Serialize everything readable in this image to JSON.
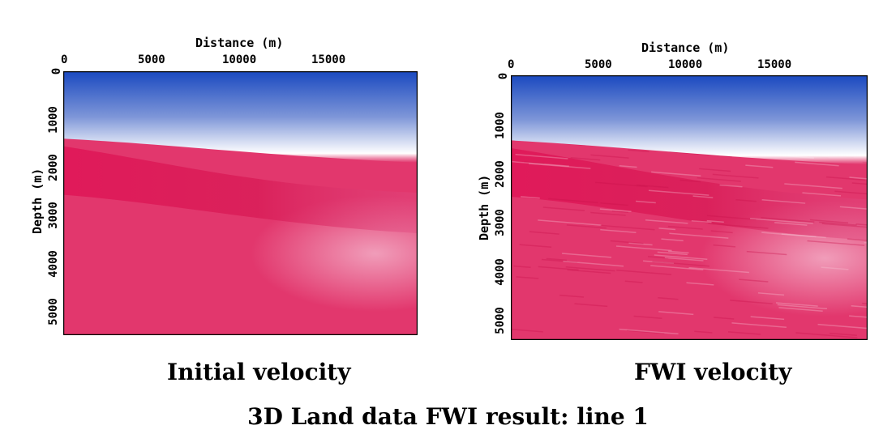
{
  "title": "3D Land data FWI result: line 1",
  "colors": {
    "low_velocity": "#1a49c0",
    "mid_velocity": "#ffffff",
    "high_velocity": "#e01a5a"
  },
  "chart_data": [
    {
      "type": "heatmap",
      "caption": "Initial velocity",
      "xlabel": "Distance (m)",
      "ylabel": "Depth (m)",
      "xlim": [
        0,
        19700
      ],
      "ylim": [
        0,
        5500
      ],
      "xticks": [
        "0",
        "5000",
        "10000",
        "15000"
      ],
      "yticks": [
        "0",
        "1000",
        "2000",
        "3000",
        "4000",
        "5000"
      ],
      "interface_depth_m": [
        1100,
        1600
      ],
      "high_velocity_layer_depth_m": [
        1900,
        2700
      ],
      "noise": false
    },
    {
      "type": "heatmap",
      "caption": "FWI velocity",
      "xlabel": "Distance (m)",
      "ylabel": "Depth (m)",
      "xlim": [
        0,
        19700
      ],
      "ylim": [
        0,
        5500
      ],
      "xticks": [
        "0",
        "5000",
        "10000",
        "15000"
      ],
      "yticks": [
        "0",
        "1000",
        "2000",
        "3000",
        "4000",
        "5000"
      ],
      "interface_depth_m": [
        1050,
        1550
      ],
      "high_velocity_layer_depth_m": [
        1850,
        2750
      ],
      "noise": true
    }
  ]
}
